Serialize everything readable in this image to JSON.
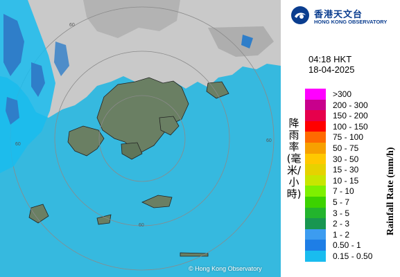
{
  "map": {
    "copyright": "© Hong Kong Observatory",
    "range_labels": [
      "60",
      "60",
      "60",
      "60"
    ],
    "colors": {
      "sea": "#36b9df",
      "land": "#6a7f63",
      "cloud": "#c9c9c9",
      "ring": "#8a8a8a",
      "rain_light": "#19bcef",
      "rain_mid": "#2f7ec9"
    }
  },
  "logo": {
    "icon": "hko-emblem-icon",
    "cn": "香港天文台",
    "en": "HONG KONG OBSERVATORY"
  },
  "timestamp": {
    "time": "04:18 HKT",
    "date": "18-04-2025"
  },
  "legend": {
    "title_cn": "降雨率(毫米/小時)",
    "title_en": "Rainfall Rate (mm/h)",
    "items": [
      {
        "label": ">300",
        "color": "#ff00ff"
      },
      {
        "label": "200 - 300",
        "color": "#c8008c"
      },
      {
        "label": "150 - 200",
        "color": "#e6004c"
      },
      {
        "label": "100 - 150",
        "color": "#ff0000"
      },
      {
        "label": "75 - 100",
        "color": "#ff6a00"
      },
      {
        "label": "50 - 75",
        "color": "#f7a000"
      },
      {
        "label": "30 - 50",
        "color": "#ffc800"
      },
      {
        "label": "15 - 30",
        "color": "#e6d200"
      },
      {
        "label": "10 - 15",
        "color": "#c8e600"
      },
      {
        "label": "7 - 10",
        "color": "#7ef000"
      },
      {
        "label": "5 - 7",
        "color": "#3cd200"
      },
      {
        "label": "3 - 5",
        "color": "#23b42d"
      },
      {
        "label": "2 - 3",
        "color": "#189650"
      },
      {
        "label": "1 - 2",
        "color": "#3c9cf0"
      },
      {
        "label": "0.50 - 1",
        "color": "#1e7ee6"
      },
      {
        "label": "0.15 - 0.50",
        "color": "#19bcef"
      }
    ]
  }
}
